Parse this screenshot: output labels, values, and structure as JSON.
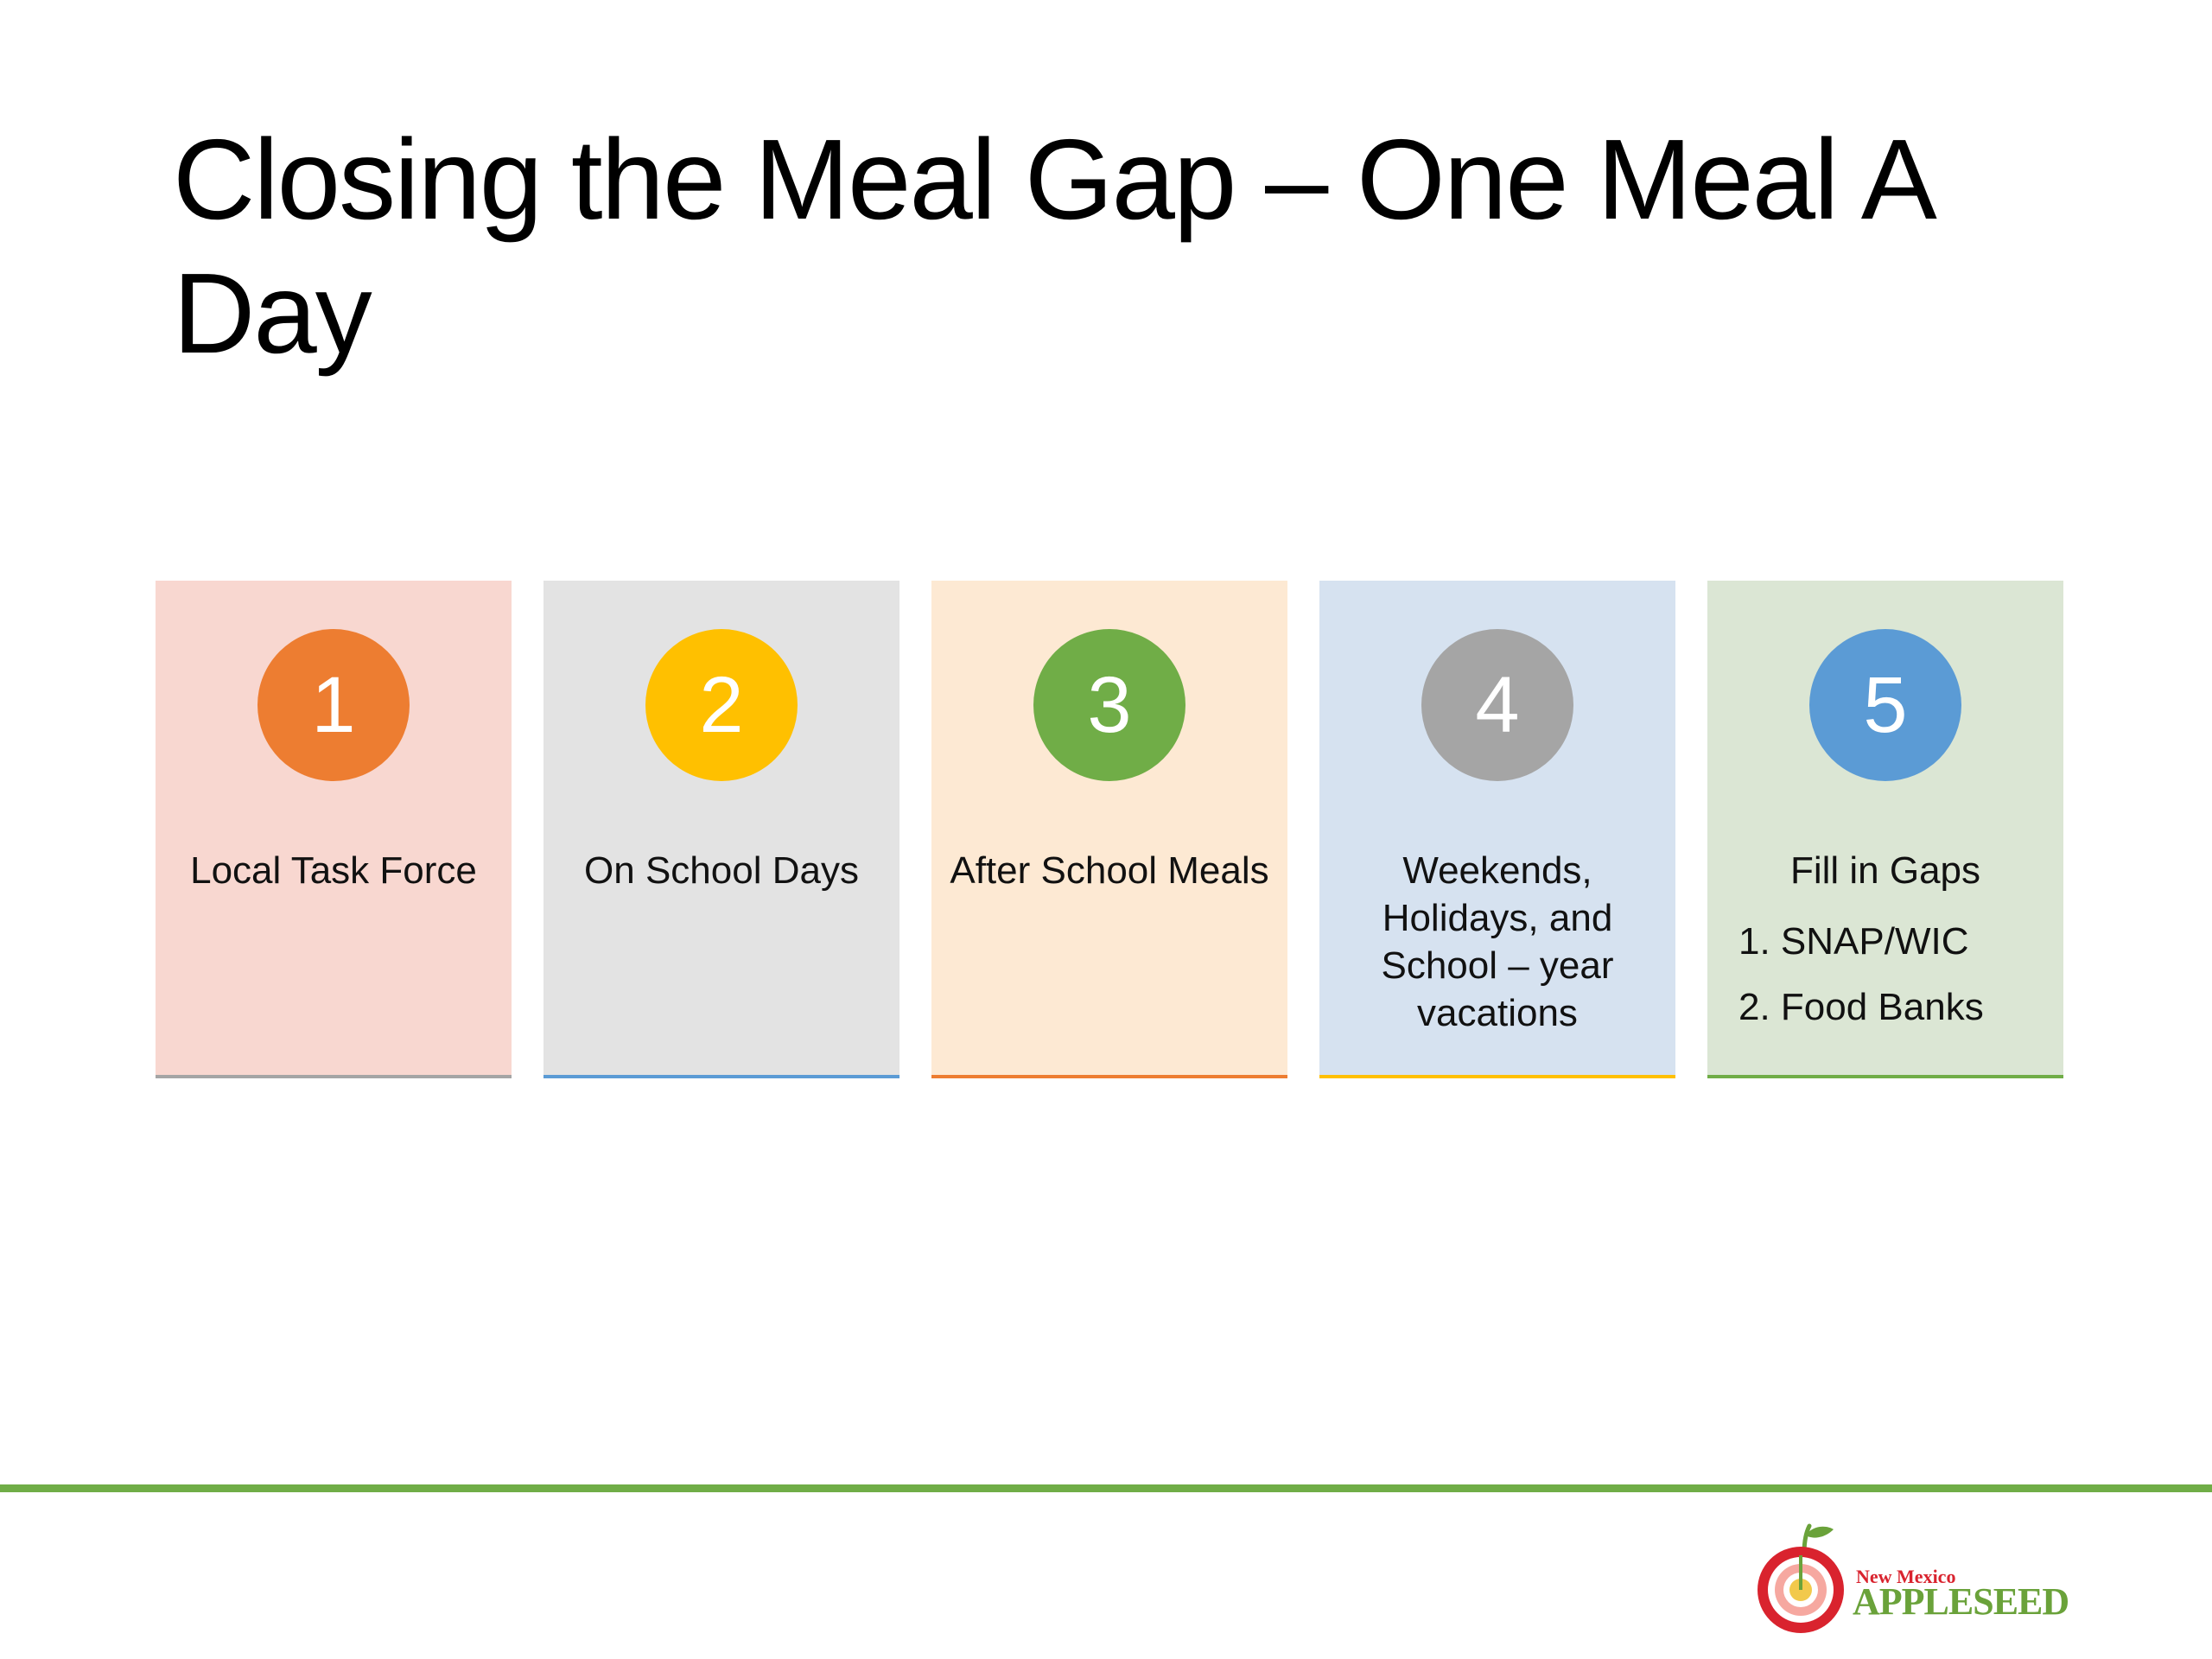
{
  "slide": {
    "title": "Closing the Meal Gap – One Meal A Day"
  },
  "cards": [
    {
      "number": "1",
      "label": "Local Task Force",
      "bg": "#f8d7d0",
      "circle": "#ed7d31",
      "border": "#a5a5a5"
    },
    {
      "number": "2",
      "label": "On School Days",
      "bg": "#e3e3e3",
      "circle": "#ffc000",
      "border": "#5b9bd5"
    },
    {
      "number": "3",
      "label": "After School Meals",
      "bg": "#fde9d3",
      "circle": "#70ad47",
      "border": "#ed7d31"
    },
    {
      "number": "4",
      "label": "Weekends, Holidays, and School – year vacations",
      "bg": "#d6e2f0",
      "circle": "#a5a5a5",
      "border": "#ffc000"
    },
    {
      "number": "5",
      "label": "Fill in Gaps",
      "bg": "#dbe6d4",
      "circle": "#5b9bd5",
      "border": "#70ad47",
      "items": [
        "1. SNAP/WIC",
        "2. Food Banks"
      ]
    }
  ],
  "logo": {
    "line1": "New Mexico",
    "line2": "APPLESEED"
  },
  "footer": {
    "line_color": "#70ad47"
  }
}
